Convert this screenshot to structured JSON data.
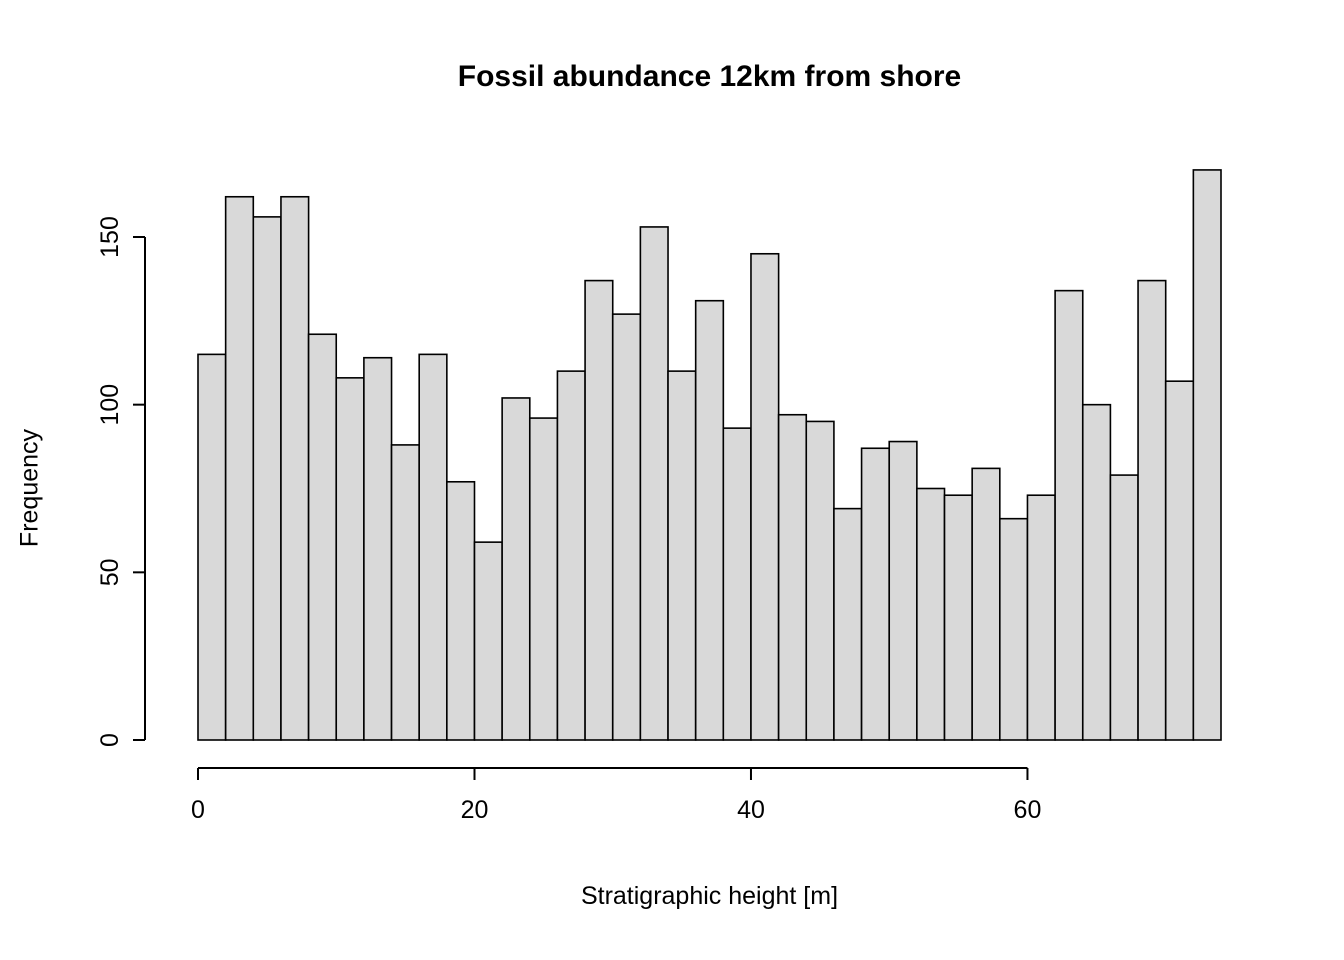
{
  "chart_data": {
    "type": "bar",
    "subtype": "histogram",
    "title": "Fossil abundance 12km from shore",
    "xlabel": "Stratigraphic height [m]",
    "ylabel": "Frequency",
    "bin_start": 0,
    "bin_width": 2,
    "values": [
      115,
      162,
      156,
      162,
      121,
      108,
      114,
      88,
      115,
      77,
      59,
      102,
      96,
      110,
      137,
      127,
      153,
      110,
      131,
      93,
      145,
      97,
      95,
      69,
      87,
      89,
      75,
      73,
      81,
      66,
      73,
      134,
      100,
      79,
      137,
      107,
      170
    ],
    "x_ticks": [
      0,
      20,
      40,
      60
    ],
    "y_ticks": [
      0,
      50,
      100,
      150
    ],
    "xlim": [
      0,
      74
    ],
    "ylim": [
      0,
      170
    ],
    "grid": false,
    "legend": "none",
    "bar_fill": "#d9d9d9",
    "bar_stroke": "#000000",
    "axis_color": "#000000"
  }
}
